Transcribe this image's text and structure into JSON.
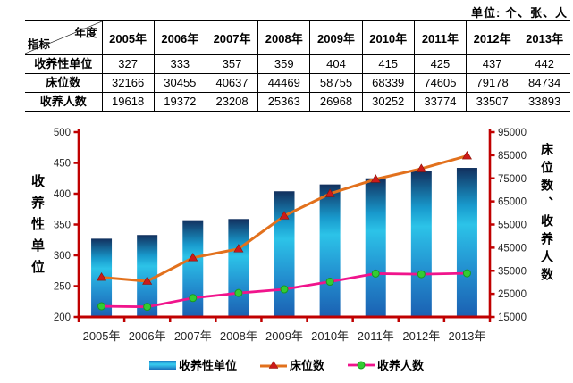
{
  "unit_note": "单位: 个、张、人",
  "table": {
    "corner": {
      "top": "年度",
      "bottom": "指标"
    },
    "years": [
      "2005年",
      "2006年",
      "2007年",
      "2008年",
      "2009年",
      "2010年",
      "2011年",
      "2012年",
      "2013年"
    ],
    "rows": [
      {
        "label": "收养性单位",
        "values": [
          327,
          333,
          357,
          359,
          404,
          415,
          425,
          437,
          442
        ]
      },
      {
        "label": "床位数",
        "values": [
          32166,
          30455,
          40637,
          44469,
          58755,
          68339,
          74605,
          79178,
          84734
        ]
      },
      {
        "label": "收养人数",
        "values": [
          19618,
          19372,
          23208,
          25363,
          26968,
          30252,
          33774,
          33507,
          33893
        ]
      }
    ]
  },
  "chart_data": {
    "type": "bar",
    "subtype": "combo bar + two lines, dual y-axes",
    "categories": [
      "2005年",
      "2006年",
      "2007年",
      "2008年",
      "2009年",
      "2010年",
      "2011年",
      "2012年",
      "2013年"
    ],
    "series": [
      {
        "name": "收养性单位",
        "chart": "bar",
        "axis": "left",
        "values": [
          327,
          333,
          357,
          359,
          404,
          415,
          425,
          437,
          442
        ]
      },
      {
        "name": "床位数",
        "chart": "line",
        "axis": "right",
        "marker": "red-triangle",
        "line_color": "#e2711d",
        "marker_color": "#cc1a1a",
        "values": [
          32166,
          30455,
          40637,
          44469,
          58755,
          68339,
          74605,
          79178,
          84734
        ]
      },
      {
        "name": "收养人数",
        "chart": "line",
        "axis": "right",
        "marker": "green-circle",
        "line_color": "#f0148c",
        "marker_color": "#33cc33",
        "values": [
          19618,
          19372,
          23208,
          25363,
          26968,
          30252,
          33774,
          33507,
          33893
        ]
      }
    ],
    "left_axis": {
      "title": "收养性单位",
      "min": 200,
      "max": 500,
      "step": 50
    },
    "right_axis": {
      "title": "床位数、收养人数",
      "min": 15000,
      "max": 95000,
      "step": 10000
    },
    "legend": {
      "position": "bottom",
      "items": [
        "收养性单位",
        "床位数",
        "收养人数"
      ]
    },
    "grid": false,
    "axis_color": "#c00000",
    "tick_label_color": "#262626",
    "bar_gradient": [
      "#12305e",
      "#1899cc",
      "#2cc3e8",
      "#2390d0",
      "#1b60b2"
    ]
  }
}
